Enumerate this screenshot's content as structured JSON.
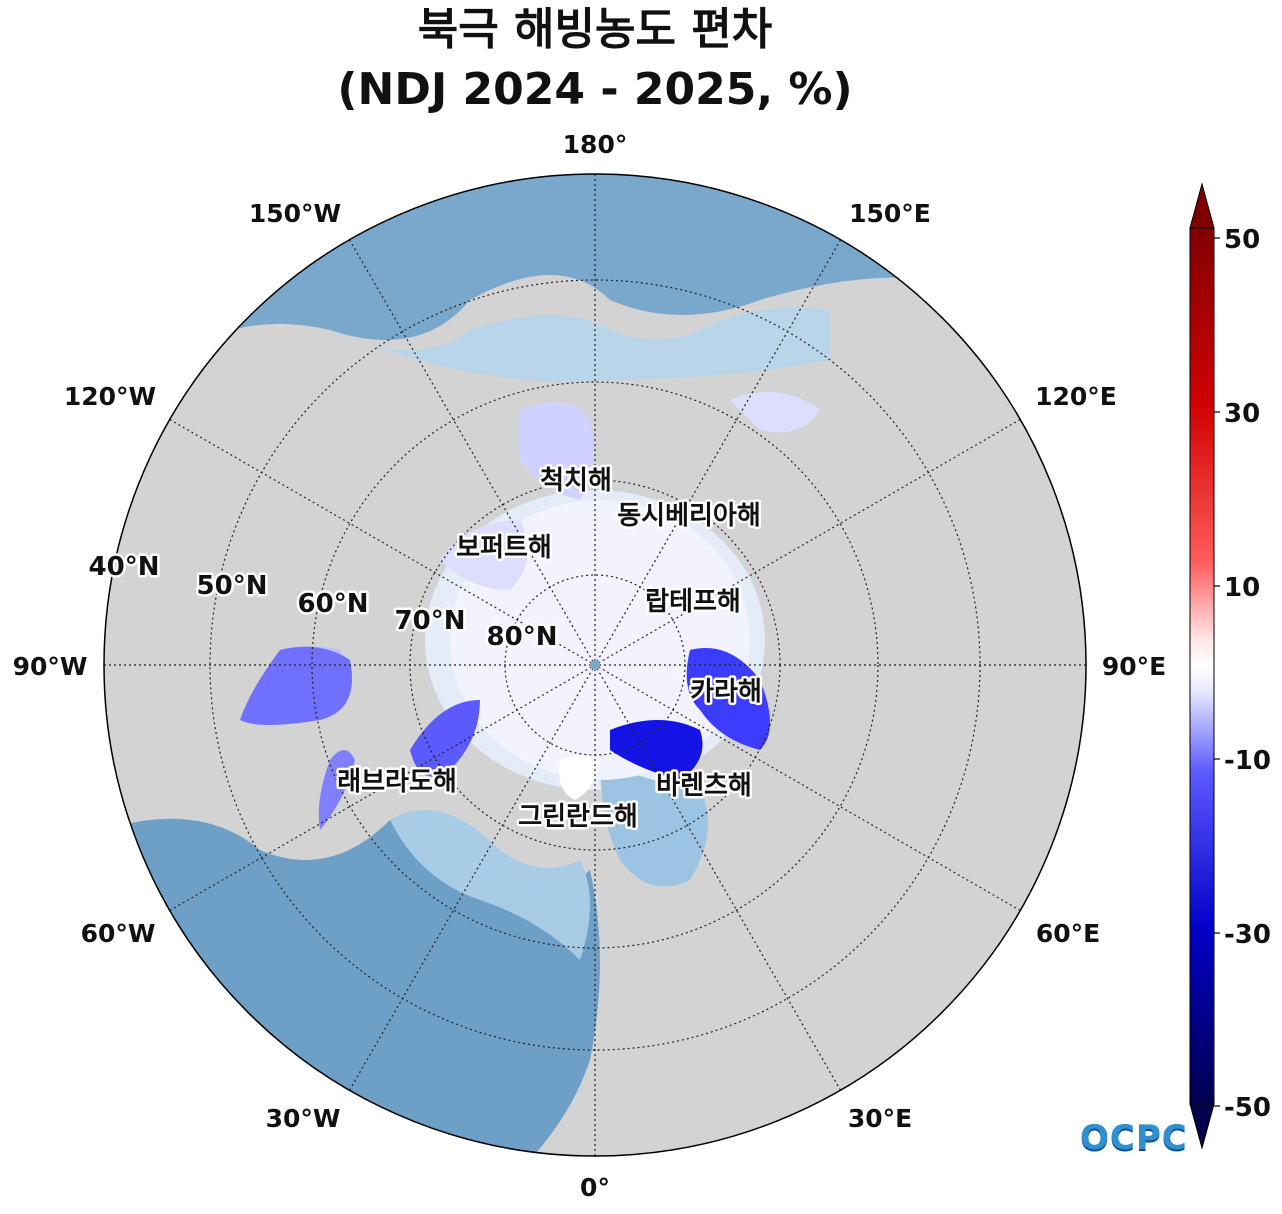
{
  "title": {
    "line1": "북극 해빙농도 편차",
    "line2": "(NDJ 2024 - 2025, %)"
  },
  "map": {
    "projection": "north-polar-stereographic",
    "longitude_labels": [
      "180°",
      "150°E",
      "120°E",
      "90°E",
      "60°E",
      "30°E",
      "0°",
      "30°W",
      "60°W",
      "90°W",
      "120°W",
      "150°W"
    ],
    "latitude_labels": [
      "40°N",
      "50°N",
      "60°N",
      "70°N",
      "80°N"
    ],
    "region_labels": [
      "척치해",
      "동시베리아해",
      "보퍼트해",
      "랍테프해",
      "카라해",
      "바렌츠해",
      "그린란드해",
      "래브라도해"
    ],
    "colors": {
      "land": "#d3d3d3",
      "ocean": "#7aa8cc",
      "negative_anomaly": "#0000ff",
      "positive_anomaly": "#ff0000"
    }
  },
  "colorbar": {
    "ticks": [
      "50",
      "30",
      "10",
      "-10",
      "-30",
      "-50"
    ],
    "min": -50,
    "max": 50,
    "extend": "both",
    "colormap": "seismic"
  },
  "logo": {
    "text": "OCPC"
  }
}
